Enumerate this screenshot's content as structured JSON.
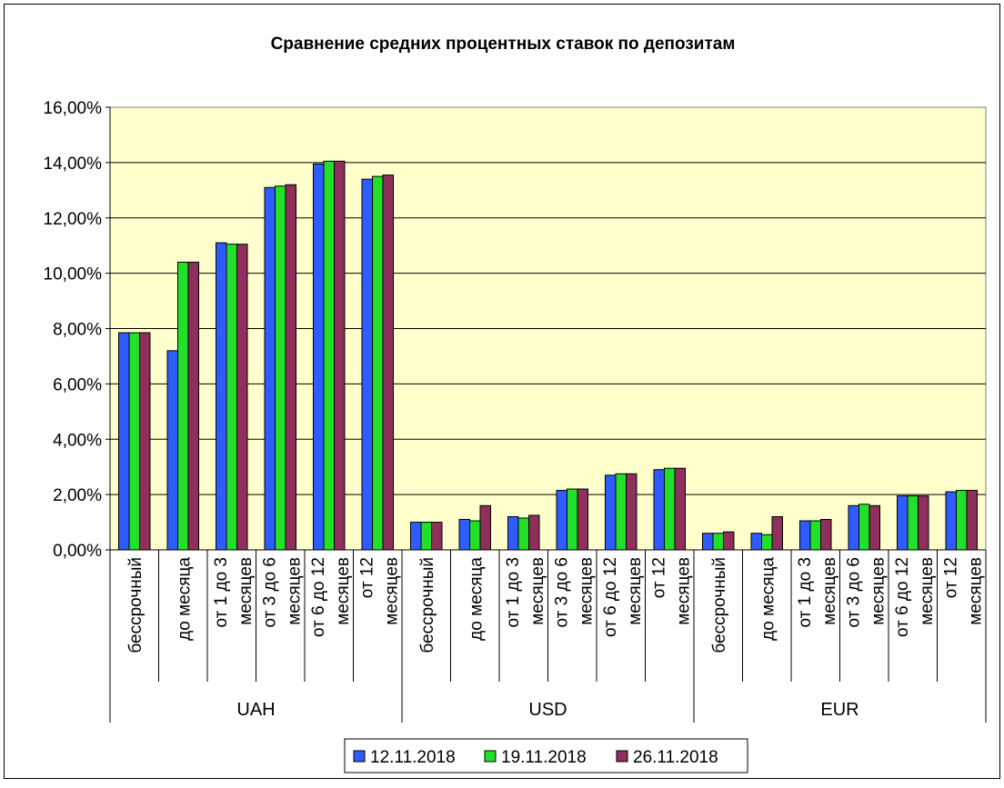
{
  "chart_data": {
    "type": "bar",
    "title": "Сравнение средних процентных ставок по депозитам",
    "xlabel": "",
    "ylabel": "",
    "ylim": [
      0,
      16
    ],
    "ytick_step": 2,
    "y_tick_labels": [
      "0,00%",
      "2,00%",
      "4,00%",
      "6,00%",
      "8,00%",
      "10,00%",
      "12,00%",
      "14,00%",
      "16,00%"
    ],
    "grid": true,
    "legend_position": "bottom",
    "groups": [
      {
        "name": "UAH",
        "span": 6
      },
      {
        "name": "USD",
        "span": 6
      },
      {
        "name": "EUR",
        "span": 6
      }
    ],
    "categories": [
      [
        "бессрочный"
      ],
      [
        "до месяца"
      ],
      [
        "от 1 до 3",
        "месяцев"
      ],
      [
        "от 3 до 6",
        "месяцев"
      ],
      [
        "от 6 до 12",
        "месяцев"
      ],
      [
        "от 12",
        "месяцев"
      ],
      [
        "бессрочный"
      ],
      [
        "до месяца"
      ],
      [
        "от 1 до 3",
        "месяцев"
      ],
      [
        "от 3 до 6",
        "месяцев"
      ],
      [
        "от 6 до 12",
        "месяцев"
      ],
      [
        "от 12",
        "месяцев"
      ],
      [
        "бессрочный"
      ],
      [
        "до месяца"
      ],
      [
        "от 1 до 3",
        "месяцев"
      ],
      [
        "от 3 до 6",
        "месяцев"
      ],
      [
        "от 6 до 12",
        "месяцев"
      ],
      [
        "от 12",
        "месяцев"
      ]
    ],
    "series": [
      {
        "name": "12.11.2018",
        "color": "#2E5CFF",
        "values": [
          7.85,
          7.2,
          11.1,
          13.1,
          13.95,
          13.4,
          1.0,
          1.1,
          1.2,
          2.15,
          2.7,
          2.9,
          0.6,
          0.6,
          1.05,
          1.6,
          1.95,
          2.1
        ]
      },
      {
        "name": "19.11.2018",
        "color": "#22E02A",
        "values": [
          7.85,
          10.4,
          11.05,
          13.15,
          14.05,
          13.5,
          1.0,
          1.05,
          1.15,
          2.2,
          2.75,
          2.95,
          0.6,
          0.55,
          1.05,
          1.65,
          1.95,
          2.15
        ]
      },
      {
        "name": "26.11.2018",
        "color": "#8E2F5C",
        "values": [
          7.85,
          10.4,
          11.05,
          13.2,
          14.05,
          13.55,
          1.0,
          1.6,
          1.25,
          2.2,
          2.75,
          2.95,
          0.65,
          1.2,
          1.1,
          1.6,
          1.95,
          2.15
        ]
      }
    ],
    "colors": {
      "plot_background": "#FFFFCC",
      "gridline": "#000000"
    }
  }
}
